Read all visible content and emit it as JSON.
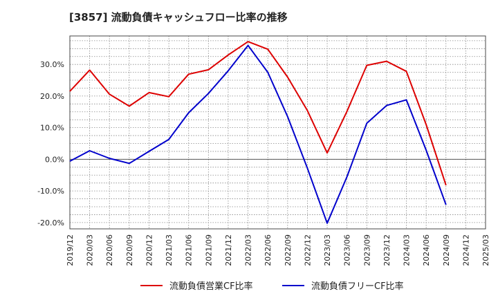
{
  "chart_data": {
    "type": "line",
    "title": "[3857]  流動負債キャッシュフロー比率の推移",
    "x": [
      "2019/12",
      "2020/03",
      "2020/06",
      "2020/09",
      "2020/12",
      "2021/03",
      "2021/06",
      "2021/09",
      "2021/12",
      "2022/03",
      "2022/06",
      "2022/09",
      "2022/12",
      "2023/03",
      "2023/06",
      "2023/09",
      "2023/12",
      "2024/03",
      "2024/06",
      "2024/09",
      "2024/12",
      "2025/03"
    ],
    "series": [
      {
        "name": "流動負債営業CF比率",
        "color": "#dd0000",
        "values": [
          21.5,
          28.2,
          20.6,
          16.8,
          21.1,
          19.8,
          26.9,
          28.3,
          33.0,
          37.2,
          34.8,
          26.0,
          15.4,
          2.0,
          15.2,
          29.7,
          31.0,
          27.8,
          11.0,
          -8.2,
          null,
          null
        ]
      },
      {
        "name": "流動負債フリーCF比率",
        "color": "#0000cc",
        "values": [
          -0.6,
          2.7,
          0.3,
          -1.3,
          2.5,
          6.3,
          14.7,
          20.8,
          28.0,
          36.0,
          27.5,
          13.5,
          -2.8,
          -20.2,
          -5.5,
          11.4,
          17.0,
          18.8,
          2.9,
          -14.4,
          null,
          null
        ]
      }
    ],
    "yticks": [
      -20,
      -10,
      0,
      10,
      20,
      30
    ],
    "ytick_labels": [
      "-20.0%",
      "-10.0%",
      "0.0%",
      "10.0%",
      "20.0%",
      "30.0%"
    ],
    "ylim": [
      -22,
      39
    ],
    "grid": true,
    "legend_position": "bottom"
  }
}
